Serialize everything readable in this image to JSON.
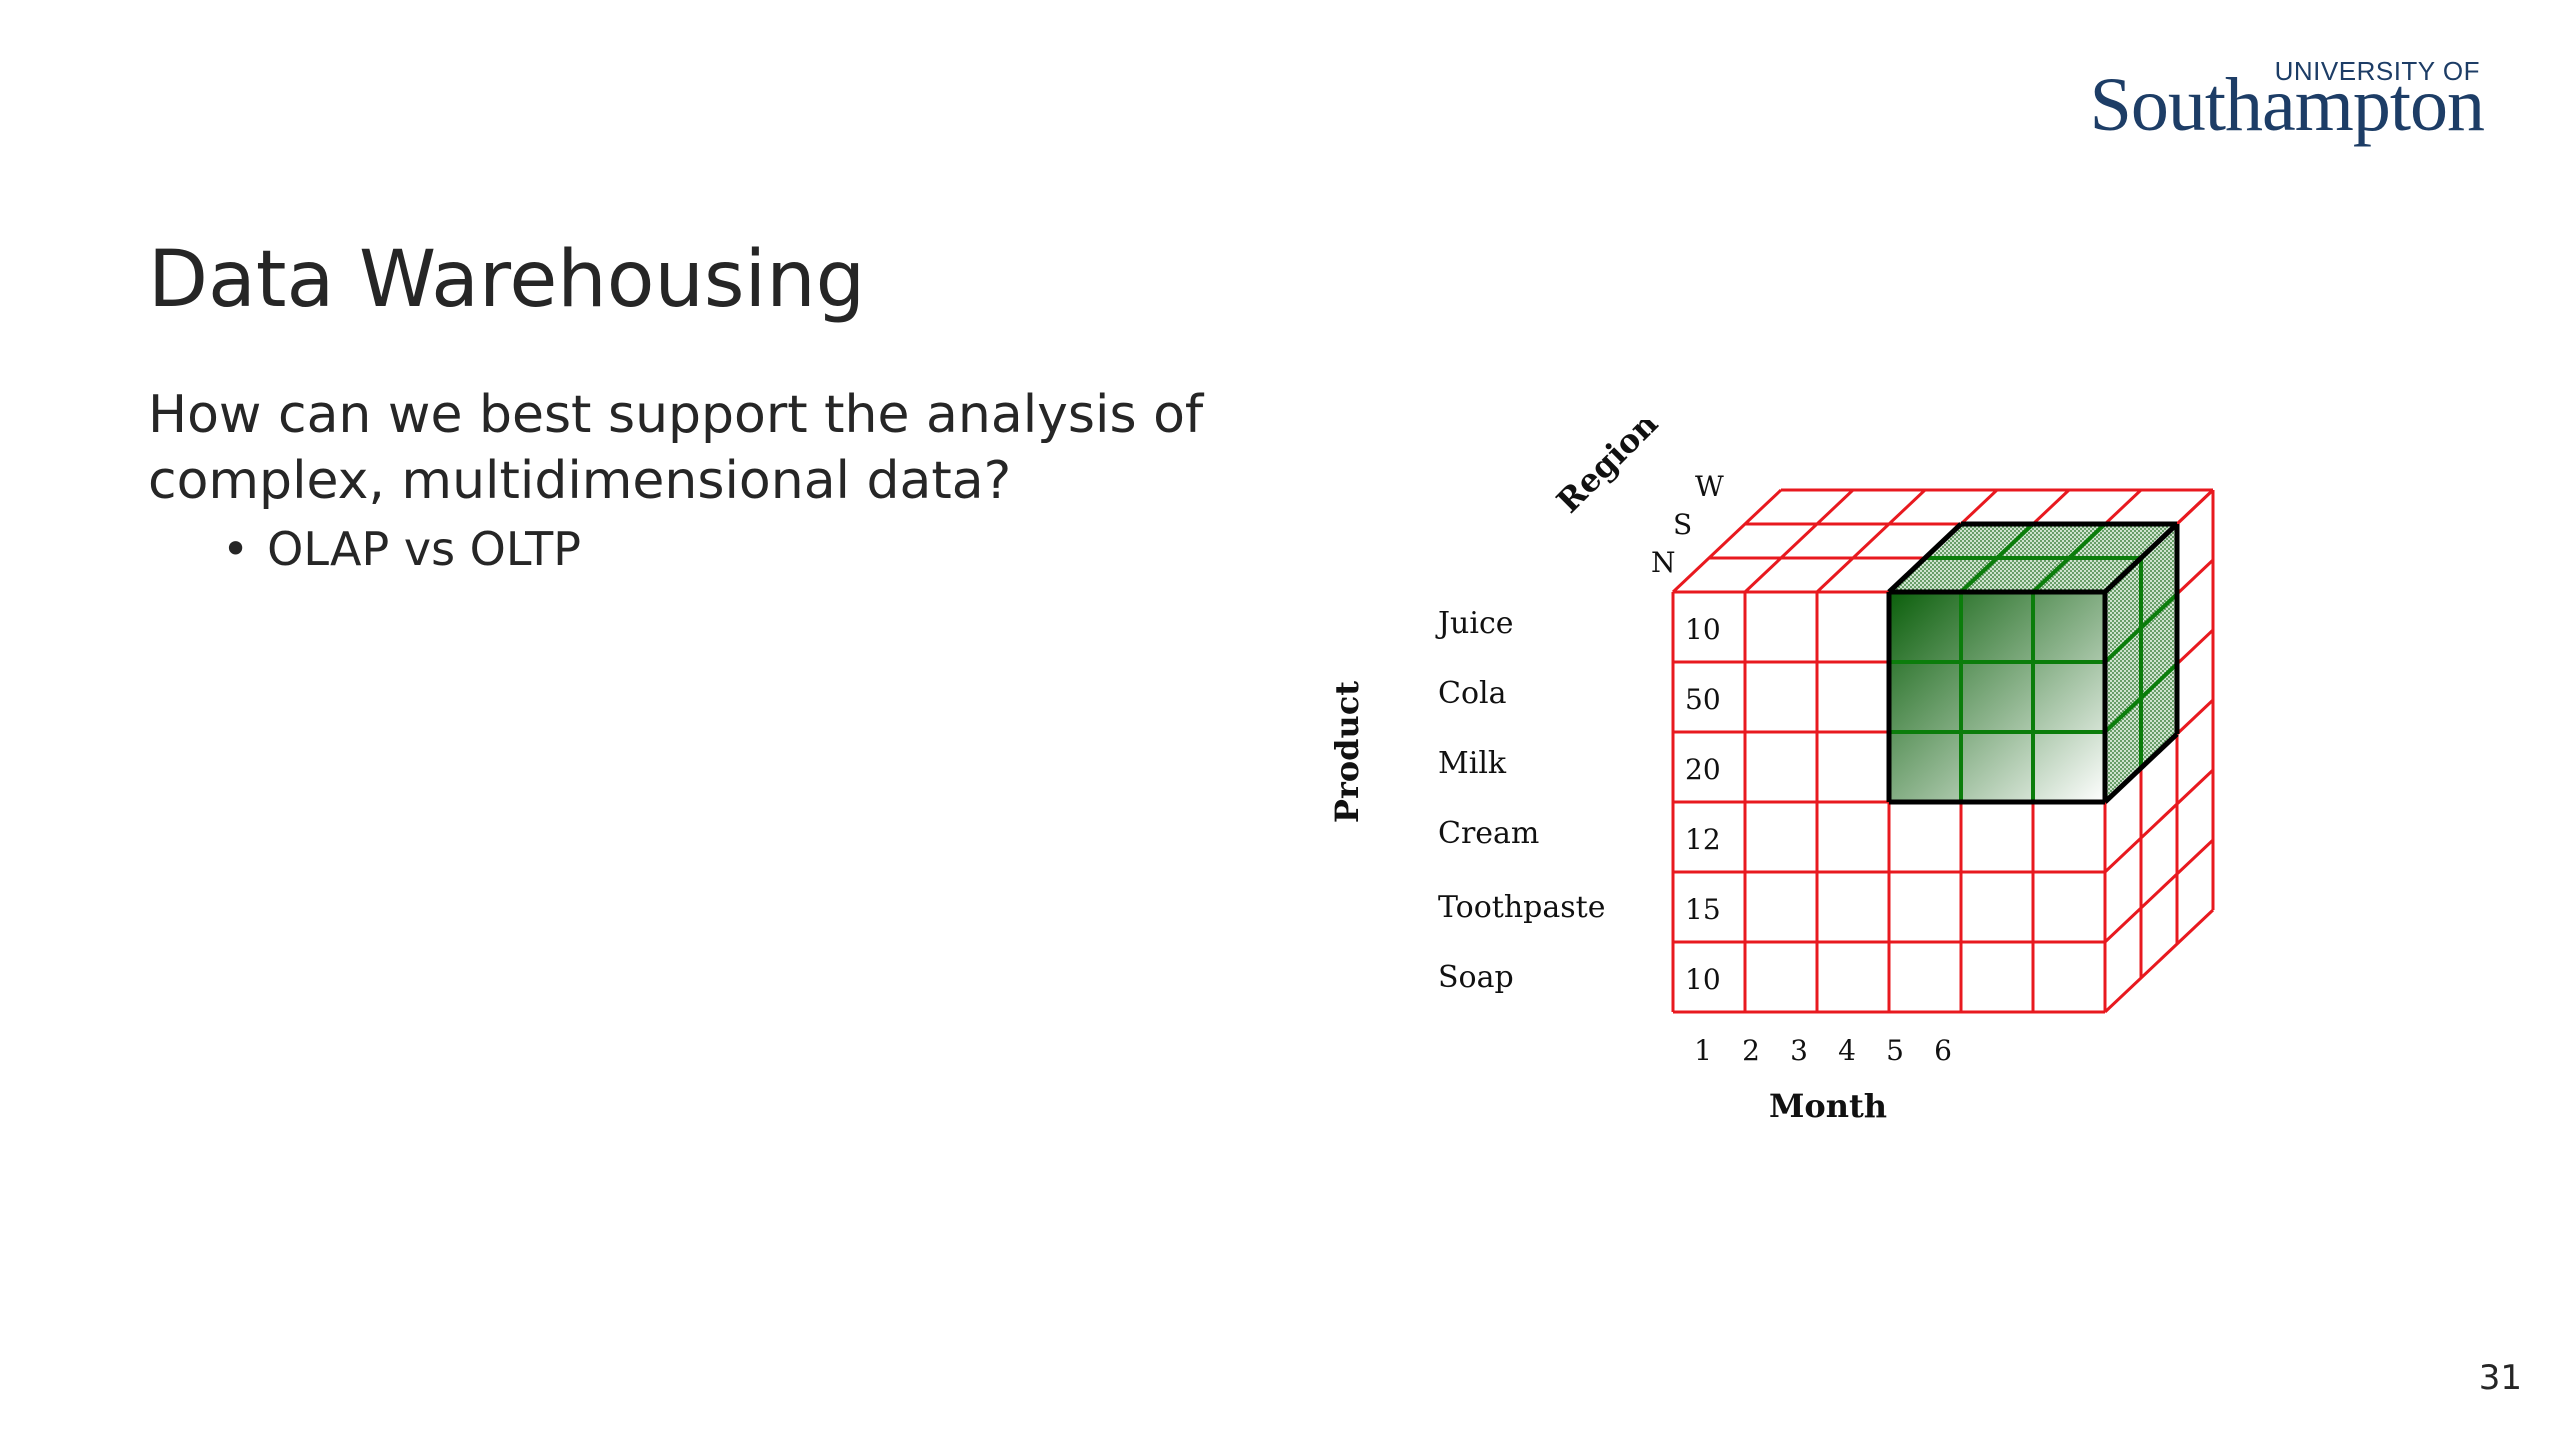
{
  "logo": {
    "line1": "UNIVERSITY OF",
    "line2": "Southampton"
  },
  "slide": {
    "title": "Data Warehousing",
    "body": "How can we best support the analysis of complex, multidimensional data?",
    "bullet": "OLAP vs OLTP",
    "number": "31"
  },
  "cube": {
    "region_label": "Region",
    "product_label": "Product",
    "month_label": "Month",
    "regions": [
      "N",
      "S",
      "W"
    ],
    "products": [
      "Juice",
      "Cola",
      "Milk",
      "Cream",
      "Toothpaste",
      "Soap"
    ],
    "months": [
      "1",
      "2",
      "3",
      "4",
      "5",
      "6"
    ],
    "values": [
      "10",
      "50",
      "20",
      "12",
      "15",
      "10"
    ],
    "colors": {
      "grid": "#e8191f",
      "highlight": "#0b7d0b",
      "highlight_border": "#000000"
    }
  }
}
